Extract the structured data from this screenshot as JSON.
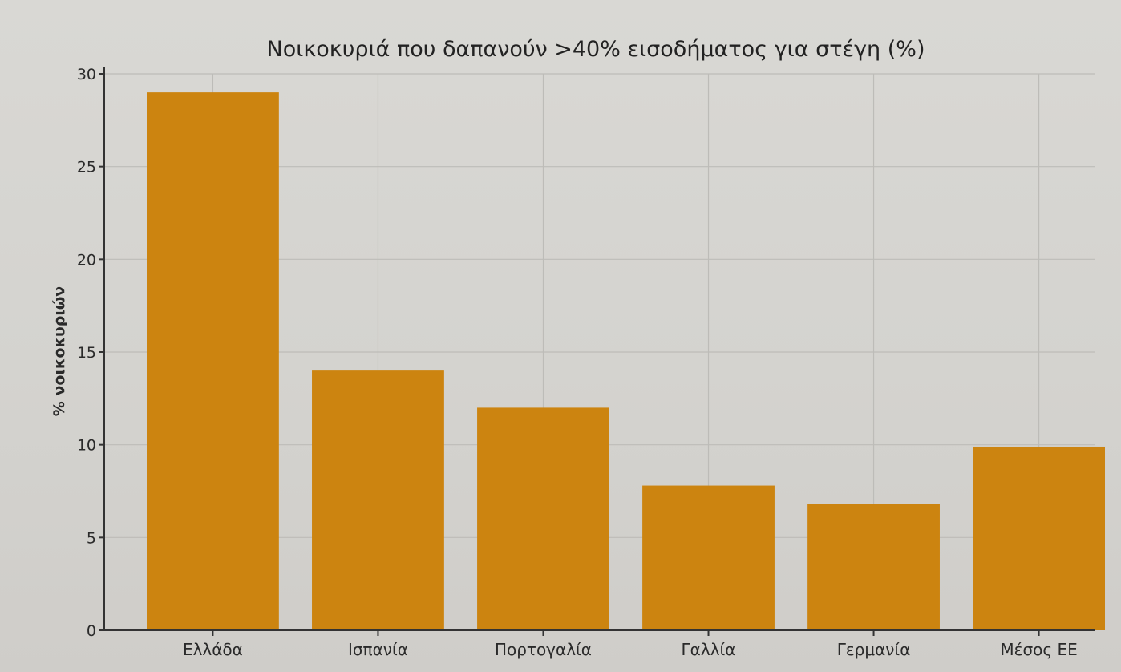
{
  "chart_data": {
    "type": "bar",
    "title": "Νοικοκυριά που δαπανούν >40% εισοδήματος για στέγη (%)",
    "xlabel": "",
    "ylabel": "% νοικοκυριών",
    "categories": [
      "Ελλάδα",
      "Ισπανία",
      "Πορτογαλία",
      "Γαλλία",
      "Γερμανία",
      "Μέσος ΕΕ"
    ],
    "values": [
      29,
      14,
      12,
      7.8,
      6.8,
      9.9
    ],
    "ylim": [
      0,
      30
    ],
    "yticks": [
      0,
      5,
      10,
      15,
      20,
      25,
      30
    ],
    "bar_color": "#cc8410",
    "grid": true
  }
}
